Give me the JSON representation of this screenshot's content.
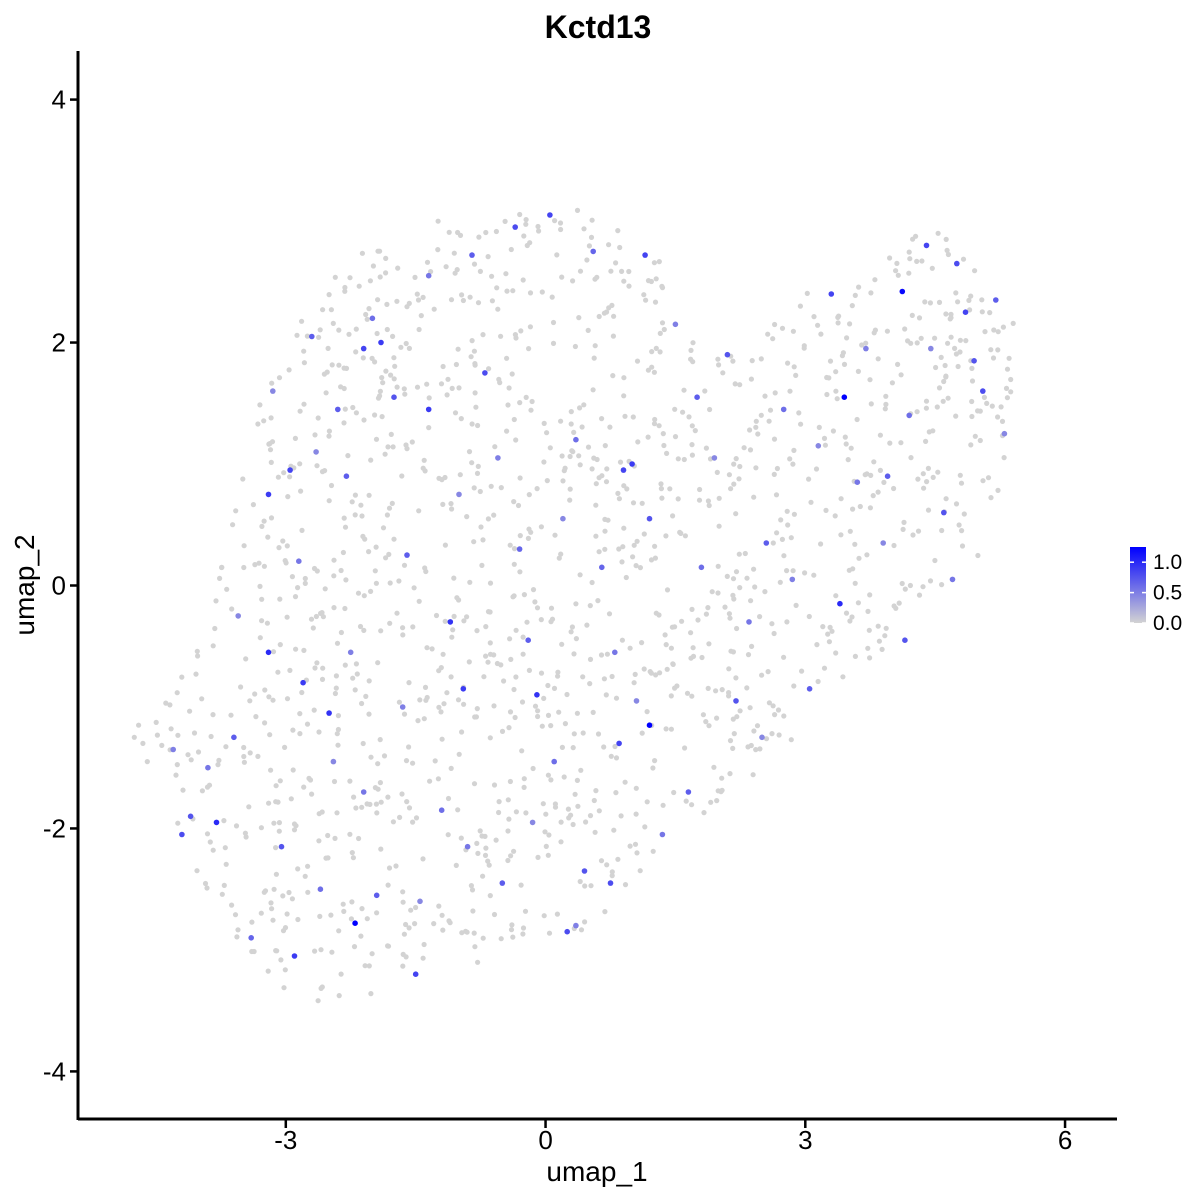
{
  "chart_data": {
    "type": "scatter",
    "title": "Kctd13",
    "xlabel": "umap_1",
    "ylabel": "umap_2",
    "xlim": [
      -5.4,
      6.6
    ],
    "ylim": [
      -4.4,
      4.4
    ],
    "x_ticks": [
      -3,
      0,
      3,
      6
    ],
    "x_tick_labels": [
      "-3",
      "0",
      "3",
      "6"
    ],
    "y_ticks": [
      -4,
      -2,
      0,
      2,
      4
    ],
    "y_tick_labels": [
      "-4",
      "-2",
      "0",
      "2",
      "4"
    ],
    "grid": false,
    "legend": {
      "placement": "right",
      "type": "colorbar",
      "range": [
        0,
        1.25
      ],
      "ticks": [
        0,
        0.5,
        1.0
      ],
      "tick_labels": [
        "0.0",
        "0.5",
        "1.0"
      ],
      "low_color": "#d3d3d3",
      "high_color": "#0000ff"
    },
    "points": [
      {
        "x": 3.45,
        "y": 1.55,
        "v": 1.25
      },
      {
        "x": 4.12,
        "y": 2.42,
        "v": 1.2
      },
      {
        "x": 1.2,
        "y": -1.15,
        "v": 1.25
      },
      {
        "x": -2.2,
        "y": -2.78,
        "v": 1.25
      },
      {
        "x": 0.05,
        "y": 3.05,
        "v": 0.85
      },
      {
        "x": -0.35,
        "y": 2.95,
        "v": 0.8
      },
      {
        "x": -1.9,
        "y": 2.0,
        "v": 0.9
      },
      {
        "x": -2.1,
        "y": 1.95,
        "v": 0.85
      },
      {
        "x": -3.2,
        "y": 0.75,
        "v": 0.9
      },
      {
        "x": -2.95,
        "y": 0.95,
        "v": 0.85
      },
      {
        "x": -3.2,
        "y": -0.55,
        "v": 1.0
      },
      {
        "x": -2.8,
        "y": -0.8,
        "v": 0.9
      },
      {
        "x": -2.5,
        "y": -1.05,
        "v": 0.95
      },
      {
        "x": -3.8,
        "y": -1.95,
        "v": 1.0
      },
      {
        "x": -1.35,
        "y": 1.45,
        "v": 0.9
      },
      {
        "x": 0.9,
        "y": 0.95,
        "v": 0.85
      },
      {
        "x": 1.15,
        "y": 2.72,
        "v": 0.85
      },
      {
        "x": 3.4,
        "y": -0.15,
        "v": 1.0
      },
      {
        "x": 3.3,
        "y": 2.4,
        "v": 0.85
      },
      {
        "x": 4.4,
        "y": 2.8,
        "v": 0.85
      },
      {
        "x": 4.75,
        "y": 2.65,
        "v": 0.8
      },
      {
        "x": 4.85,
        "y": 2.25,
        "v": 0.85
      },
      {
        "x": 5.05,
        "y": 1.6,
        "v": 0.8
      },
      {
        "x": -1.1,
        "y": -0.3,
        "v": 0.95
      },
      {
        "x": -0.95,
        "y": -0.85,
        "v": 0.9
      },
      {
        "x": -0.1,
        "y": -0.9,
        "v": 0.95
      },
      {
        "x": 0.85,
        "y": -1.3,
        "v": 0.85
      },
      {
        "x": 0.25,
        "y": -2.85,
        "v": 0.8
      },
      {
        "x": -1.5,
        "y": -3.2,
        "v": 0.85
      },
      {
        "x": -2.9,
        "y": -3.05,
        "v": 0.9
      },
      {
        "x": -4.1,
        "y": -1.9,
        "v": 0.75
      },
      {
        "x": -4.2,
        "y": -2.05,
        "v": 0.8
      },
      {
        "x": -0.7,
        "y": 1.75,
        "v": 0.8
      },
      {
        "x": 1.0,
        "y": 1.0,
        "v": 0.9
      },
      {
        "x": 2.1,
        "y": 1.9,
        "v": 0.75
      },
      {
        "x": 1.75,
        "y": 1.55,
        "v": 0.7
      },
      {
        "x": -2.3,
        "y": 0.9,
        "v": 0.7
      },
      {
        "x": -1.75,
        "y": 1.55,
        "v": 0.75
      },
      {
        "x": 0.75,
        "y": -2.45,
        "v": 0.8
      },
      {
        "x": 2.2,
        "y": -0.95,
        "v": 0.75
      },
      {
        "x": -2.7,
        "y": 2.05,
        "v": 0.7
      },
      {
        "x": -2.4,
        "y": 1.45,
        "v": 0.7
      },
      {
        "x": -0.3,
        "y": 0.3,
        "v": 0.65
      },
      {
        "x": 1.2,
        "y": 0.55,
        "v": 0.75
      },
      {
        "x": 2.55,
        "y": 0.35,
        "v": 0.7
      },
      {
        "x": 3.95,
        "y": 0.9,
        "v": 0.7
      },
      {
        "x": 4.6,
        "y": 0.6,
        "v": 0.75
      },
      {
        "x": -0.85,
        "y": 2.72,
        "v": 0.7
      },
      {
        "x": 0.55,
        "y": 2.75,
        "v": 0.65
      },
      {
        "x": -3.6,
        "y": -1.25,
        "v": 0.7
      },
      {
        "x": -3.05,
        "y": -2.15,
        "v": 0.75
      },
      {
        "x": -1.95,
        "y": -2.55,
        "v": 0.7
      },
      {
        "x": -0.5,
        "y": -2.45,
        "v": 0.7
      },
      {
        "x": 0.45,
        "y": -2.35,
        "v": 0.75
      },
      {
        "x": 1.65,
        "y": -1.7,
        "v": 0.7
      },
      {
        "x": 3.05,
        "y": -0.85,
        "v": 0.7
      },
      {
        "x": 4.15,
        "y": -0.45,
        "v": 0.75
      },
      {
        "x": 5.2,
        "y": 2.35,
        "v": 0.7
      },
      {
        "x": 4.95,
        "y": 1.85,
        "v": 0.75
      },
      {
        "x": -1.6,
        "y": 0.25,
        "v": 0.7
      },
      {
        "x": -0.2,
        "y": -0.45,
        "v": 0.7
      },
      {
        "x": 0.65,
        "y": 0.15,
        "v": 0.65
      },
      {
        "x": -2.0,
        "y": 2.2,
        "v": 0.6
      },
      {
        "x": -3.4,
        "y": -2.9,
        "v": 0.65
      },
      {
        "x": -2.6,
        "y": -2.5,
        "v": 0.6
      },
      {
        "x": -1.2,
        "y": -1.85,
        "v": 0.6
      },
      {
        "x": 0.1,
        "y": -1.45,
        "v": 0.6
      },
      {
        "x": 0.35,
        "y": 1.2,
        "v": 0.6
      },
      {
        "x": 1.8,
        "y": 0.15,
        "v": 0.6
      },
      {
        "x": 2.75,
        "y": 1.45,
        "v": 0.6
      },
      {
        "x": 4.2,
        "y": 1.4,
        "v": 0.6
      },
      {
        "x": -3.9,
        "y": -1.5,
        "v": 0.55
      },
      {
        "x": -2.85,
        "y": 0.2,
        "v": 0.55
      },
      {
        "x": -1.35,
        "y": 2.55,
        "v": 0.55
      },
      {
        "x": 0.8,
        "y": -0.55,
        "v": 0.55
      },
      {
        "x": 2.35,
        "y": -0.3,
        "v": 0.55
      },
      {
        "x": 3.6,
        "y": 0.85,
        "v": 0.55
      },
      {
        "x": 4.7,
        "y": 0.05,
        "v": 0.55
      },
      {
        "x": -2.1,
        "y": -1.7,
        "v": 0.55
      },
      {
        "x": -0.9,
        "y": -2.15,
        "v": 0.55
      },
      {
        "x": 1.35,
        "y": -2.05,
        "v": 0.55
      },
      {
        "x": -2.25,
        "y": -0.55,
        "v": 0.5
      },
      {
        "x": -0.55,
        "y": 1.05,
        "v": 0.5
      },
      {
        "x": 1.5,
        "y": 2.15,
        "v": 0.5
      },
      {
        "x": 3.7,
        "y": 1.95,
        "v": 0.5
      },
      {
        "x": -4.3,
        "y": -1.35,
        "v": 0.5
      },
      {
        "x": 0.35,
        "y": -2.8,
        "v": 0.5
      },
      {
        "x": -1.65,
        "y": -1.0,
        "v": 0.5
      },
      {
        "x": 2.85,
        "y": 0.05,
        "v": 0.5
      },
      {
        "x": -3.15,
        "y": 1.6,
        "v": 0.45
      },
      {
        "x": -2.65,
        "y": 1.1,
        "v": 0.45
      },
      {
        "x": -1.0,
        "y": 0.75,
        "v": 0.45
      },
      {
        "x": 0.2,
        "y": 0.55,
        "v": 0.45
      },
      {
        "x": 1.95,
        "y": 1.05,
        "v": 0.45
      },
      {
        "x": 3.15,
        "y": 1.15,
        "v": 0.45
      },
      {
        "x": 4.45,
        "y": 1.95,
        "v": 0.45
      },
      {
        "x": -3.55,
        "y": -0.25,
        "v": 0.45
      },
      {
        "x": -2.45,
        "y": -1.45,
        "v": 0.45
      },
      {
        "x": -1.45,
        "y": -2.6,
        "v": 0.45
      },
      {
        "x": -0.15,
        "y": -1.95,
        "v": 0.45
      },
      {
        "x": 1.05,
        "y": -0.95,
        "v": 0.45
      },
      {
        "x": 2.5,
        "y": -1.25,
        "v": 0.45
      },
      {
        "x": 3.9,
        "y": 0.35,
        "v": 0.45
      },
      {
        "x": 5.3,
        "y": 1.25,
        "v": 0.45
      }
    ],
    "background_points": {
      "value": 0,
      "count": 1450,
      "region": [
        [
          -4.9,
          -1.2
        ],
        [
          -4.0,
          -2.4
        ],
        [
          -3.3,
          -3.2
        ],
        [
          -2.55,
          -3.5
        ],
        [
          -1.7,
          -3.3
        ],
        [
          -0.5,
          -3.05
        ],
        [
          0.6,
          -2.8
        ],
        [
          1.5,
          -2.1
        ],
        [
          2.6,
          -1.45
        ],
        [
          3.4,
          -0.85
        ],
        [
          4.4,
          -0.2
        ],
        [
          5.0,
          0.25
        ],
        [
          5.35,
          1.0
        ],
        [
          5.45,
          2.1
        ],
        [
          5.1,
          2.6
        ],
        [
          4.55,
          3.1
        ],
        [
          3.9,
          2.65
        ],
        [
          3.2,
          2.55
        ],
        [
          2.5,
          2.05
        ],
        [
          1.8,
          1.85
        ],
        [
          1.3,
          2.75
        ],
        [
          0.4,
          3.15
        ],
        [
          -0.5,
          3.05
        ],
        [
          -1.4,
          3.0
        ],
        [
          -2.1,
          2.8
        ],
        [
          -2.8,
          2.25
        ],
        [
          -3.3,
          1.5
        ],
        [
          -3.6,
          0.6
        ],
        [
          -3.9,
          -0.3
        ],
        [
          -4.5,
          -1.0
        ]
      ]
    }
  }
}
